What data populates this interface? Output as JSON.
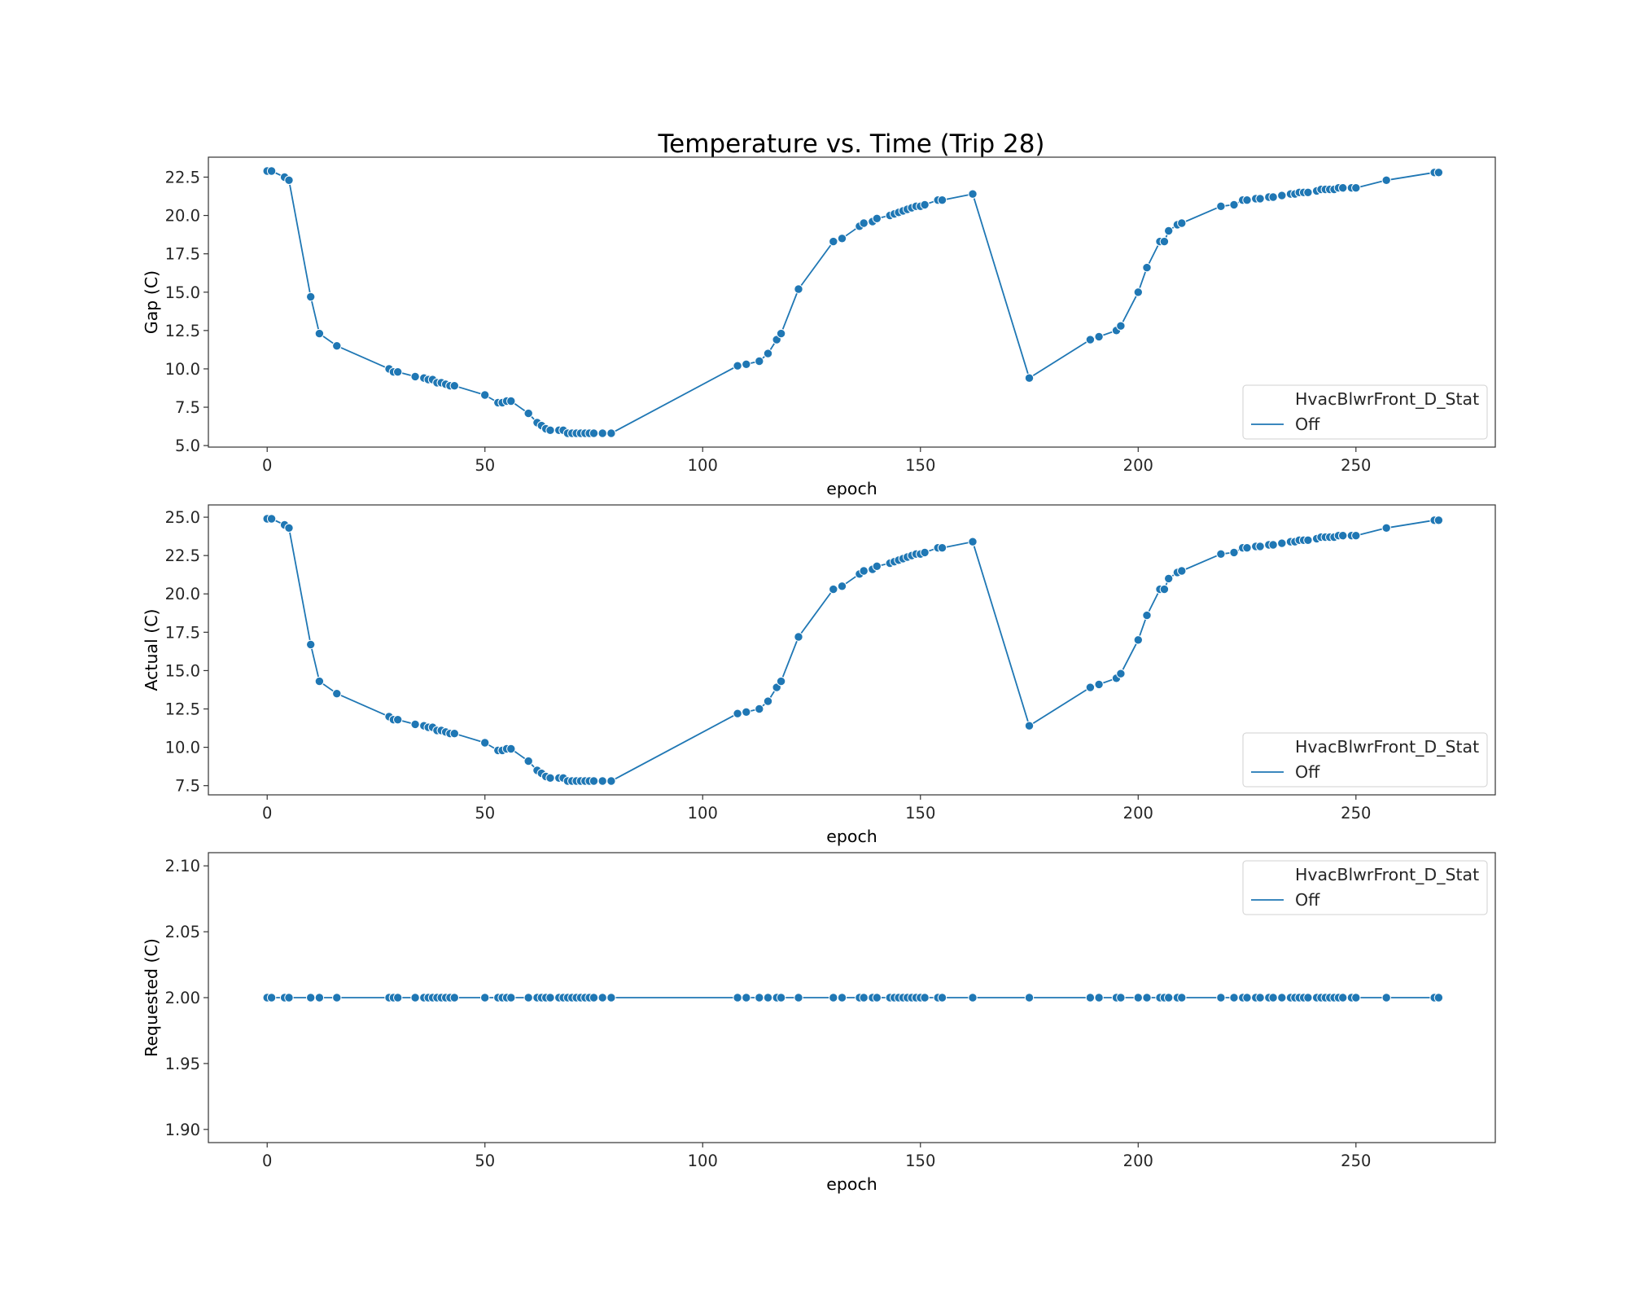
{
  "figure": {
    "title": "Temperature vs. Time (Trip 28)"
  },
  "colors": {
    "series": "#1f77b4",
    "axes": "#333333",
    "legend_border": "#d0d0d0"
  },
  "chart_data": [
    {
      "type": "line",
      "markers": "circle",
      "xlabel": "epoch",
      "ylabel": "Gap (C)",
      "xlim": [
        -13.5,
        282
      ],
      "ylim": [
        4.9,
        23.8
      ],
      "xticks": [
        "0",
        "50",
        "100",
        "150",
        "200",
        "250"
      ],
      "yticks": [
        "5.0",
        "7.5",
        "10.0",
        "12.5",
        "15.0",
        "17.5",
        "20.0",
        "22.5"
      ],
      "grid": false,
      "legend": {
        "position": "lower-right",
        "title": "HvacBlwrFront_D_Stat",
        "entries": [
          "Off"
        ]
      },
      "series": [
        {
          "name": "Off",
          "x": [
            0,
            1,
            4,
            5,
            10,
            12,
            16,
            28,
            29,
            30,
            34,
            36,
            37,
            38,
            39,
            40,
            41,
            42,
            43,
            50,
            53,
            54,
            55,
            56,
            60,
            62,
            63,
            64,
            65,
            67,
            68,
            69,
            70,
            71,
            72,
            73,
            74,
            75,
            77,
            79,
            108,
            110,
            113,
            115,
            117,
            118,
            122,
            130,
            132,
            136,
            137,
            139,
            140,
            143,
            144,
            145,
            146,
            147,
            148,
            149,
            150,
            151,
            154,
            155,
            162,
            175,
            189,
            191,
            195,
            196,
            200,
            202,
            205,
            206,
            207,
            209,
            210,
            219,
            222,
            224,
            225,
            227,
            228,
            230,
            231,
            233,
            235,
            236,
            237,
            238,
            239,
            241,
            242,
            243,
            244,
            245,
            246,
            247,
            249,
            250,
            257,
            268,
            269
          ],
          "y": [
            22.9,
            22.9,
            22.5,
            22.3,
            14.7,
            12.3,
            11.5,
            10.0,
            9.8,
            9.8,
            9.5,
            9.4,
            9.3,
            9.3,
            9.1,
            9.1,
            9.0,
            8.9,
            8.9,
            8.3,
            7.8,
            7.8,
            7.9,
            7.9,
            7.1,
            6.5,
            6.3,
            6.1,
            6.0,
            6.0,
            6.0,
            5.8,
            5.8,
            5.8,
            5.8,
            5.8,
            5.8,
            5.8,
            5.8,
            5.8,
            10.2,
            10.3,
            10.5,
            11.0,
            11.9,
            12.3,
            15.2,
            18.3,
            18.5,
            19.3,
            19.5,
            19.6,
            19.8,
            20.0,
            20.1,
            20.2,
            20.3,
            20.4,
            20.5,
            20.6,
            20.6,
            20.7,
            21.0,
            21.0,
            21.4,
            9.4,
            11.9,
            12.1,
            12.5,
            12.8,
            15.0,
            16.6,
            18.3,
            18.3,
            19.0,
            19.4,
            19.5,
            20.6,
            20.7,
            21.0,
            21.0,
            21.1,
            21.1,
            21.2,
            21.2,
            21.3,
            21.4,
            21.4,
            21.5,
            21.5,
            21.5,
            21.6,
            21.7,
            21.7,
            21.7,
            21.7,
            21.8,
            21.8,
            21.8,
            21.8,
            22.3,
            22.8,
            22.8
          ]
        }
      ]
    },
    {
      "type": "line",
      "markers": "circle",
      "xlabel": "epoch",
      "ylabel": "Actual (C)",
      "xlim": [
        -13.5,
        282
      ],
      "ylim": [
        6.9,
        25.8
      ],
      "xticks": [
        "0",
        "50",
        "100",
        "150",
        "200",
        "250"
      ],
      "yticks": [
        "7.5",
        "10.0",
        "12.5",
        "15.0",
        "17.5",
        "20.0",
        "22.5",
        "25.0"
      ],
      "grid": false,
      "legend": {
        "position": "lower-right",
        "title": "HvacBlwrFront_D_Stat",
        "entries": [
          "Off"
        ]
      },
      "series": [
        {
          "name": "Off",
          "x": [
            0,
            1,
            4,
            5,
            10,
            12,
            16,
            28,
            29,
            30,
            34,
            36,
            37,
            38,
            39,
            40,
            41,
            42,
            43,
            50,
            53,
            54,
            55,
            56,
            60,
            62,
            63,
            64,
            65,
            67,
            68,
            69,
            70,
            71,
            72,
            73,
            74,
            75,
            77,
            79,
            108,
            110,
            113,
            115,
            117,
            118,
            122,
            130,
            132,
            136,
            137,
            139,
            140,
            143,
            144,
            145,
            146,
            147,
            148,
            149,
            150,
            151,
            154,
            155,
            162,
            175,
            189,
            191,
            195,
            196,
            200,
            202,
            205,
            206,
            207,
            209,
            210,
            219,
            222,
            224,
            225,
            227,
            228,
            230,
            231,
            233,
            235,
            236,
            237,
            238,
            239,
            241,
            242,
            243,
            244,
            245,
            246,
            247,
            249,
            250,
            257,
            268,
            269
          ],
          "y": [
            24.9,
            24.9,
            24.5,
            24.3,
            16.7,
            14.3,
            13.5,
            12.0,
            11.8,
            11.8,
            11.5,
            11.4,
            11.3,
            11.3,
            11.1,
            11.1,
            11.0,
            10.9,
            10.9,
            10.3,
            9.8,
            9.8,
            9.9,
            9.9,
            9.1,
            8.5,
            8.3,
            8.1,
            8.0,
            8.0,
            8.0,
            7.8,
            7.8,
            7.8,
            7.8,
            7.8,
            7.8,
            7.8,
            7.8,
            7.8,
            12.2,
            12.3,
            12.5,
            13.0,
            13.9,
            14.3,
            17.2,
            20.3,
            20.5,
            21.3,
            21.5,
            21.6,
            21.8,
            22.0,
            22.1,
            22.2,
            22.3,
            22.4,
            22.5,
            22.6,
            22.6,
            22.7,
            23.0,
            23.0,
            23.4,
            11.4,
            13.9,
            14.1,
            14.5,
            14.8,
            17.0,
            18.6,
            20.3,
            20.3,
            21.0,
            21.4,
            21.5,
            22.6,
            22.7,
            23.0,
            23.0,
            23.1,
            23.1,
            23.2,
            23.2,
            23.3,
            23.4,
            23.4,
            23.5,
            23.5,
            23.5,
            23.6,
            23.7,
            23.7,
            23.7,
            23.7,
            23.8,
            23.8,
            23.8,
            23.8,
            24.3,
            24.8,
            24.8
          ]
        }
      ]
    },
    {
      "type": "line",
      "markers": "circle",
      "xlabel": "epoch",
      "ylabel": "Requested (C)",
      "xlim": [
        -13.5,
        282
      ],
      "ylim": [
        1.89,
        2.11
      ],
      "xticks": [
        "0",
        "50",
        "100",
        "150",
        "200",
        "250"
      ],
      "yticks": [
        "1.90",
        "1.95",
        "2.00",
        "2.05",
        "2.10"
      ],
      "grid": false,
      "legend": {
        "position": "upper-right",
        "title": "HvacBlwrFront_D_Stat",
        "entries": [
          "Off"
        ]
      },
      "series": [
        {
          "name": "Off",
          "x": [
            0,
            1,
            4,
            5,
            10,
            12,
            16,
            28,
            29,
            30,
            34,
            36,
            37,
            38,
            39,
            40,
            41,
            42,
            43,
            50,
            53,
            54,
            55,
            56,
            60,
            62,
            63,
            64,
            65,
            67,
            68,
            69,
            70,
            71,
            72,
            73,
            74,
            75,
            77,
            79,
            108,
            110,
            113,
            115,
            117,
            118,
            122,
            130,
            132,
            136,
            137,
            139,
            140,
            143,
            144,
            145,
            146,
            147,
            148,
            149,
            150,
            151,
            154,
            155,
            162,
            175,
            189,
            191,
            195,
            196,
            200,
            202,
            205,
            206,
            207,
            209,
            210,
            219,
            222,
            224,
            225,
            227,
            228,
            230,
            231,
            233,
            235,
            236,
            237,
            238,
            239,
            241,
            242,
            243,
            244,
            245,
            246,
            247,
            249,
            250,
            257,
            268,
            269
          ],
          "y": [
            2.0,
            2.0,
            2.0,
            2.0,
            2.0,
            2.0,
            2.0,
            2.0,
            2.0,
            2.0,
            2.0,
            2.0,
            2.0,
            2.0,
            2.0,
            2.0,
            2.0,
            2.0,
            2.0,
            2.0,
            2.0,
            2.0,
            2.0,
            2.0,
            2.0,
            2.0,
            2.0,
            2.0,
            2.0,
            2.0,
            2.0,
            2.0,
            2.0,
            2.0,
            2.0,
            2.0,
            2.0,
            2.0,
            2.0,
            2.0,
            2.0,
            2.0,
            2.0,
            2.0,
            2.0,
            2.0,
            2.0,
            2.0,
            2.0,
            2.0,
            2.0,
            2.0,
            2.0,
            2.0,
            2.0,
            2.0,
            2.0,
            2.0,
            2.0,
            2.0,
            2.0,
            2.0,
            2.0,
            2.0,
            2.0,
            2.0,
            2.0,
            2.0,
            2.0,
            2.0,
            2.0,
            2.0,
            2.0,
            2.0,
            2.0,
            2.0,
            2.0,
            2.0,
            2.0,
            2.0,
            2.0,
            2.0,
            2.0,
            2.0,
            2.0,
            2.0,
            2.0,
            2.0,
            2.0,
            2.0,
            2.0,
            2.0,
            2.0,
            2.0,
            2.0,
            2.0,
            2.0,
            2.0,
            2.0,
            2.0,
            2.0,
            2.0,
            2.0
          ]
        }
      ]
    }
  ]
}
